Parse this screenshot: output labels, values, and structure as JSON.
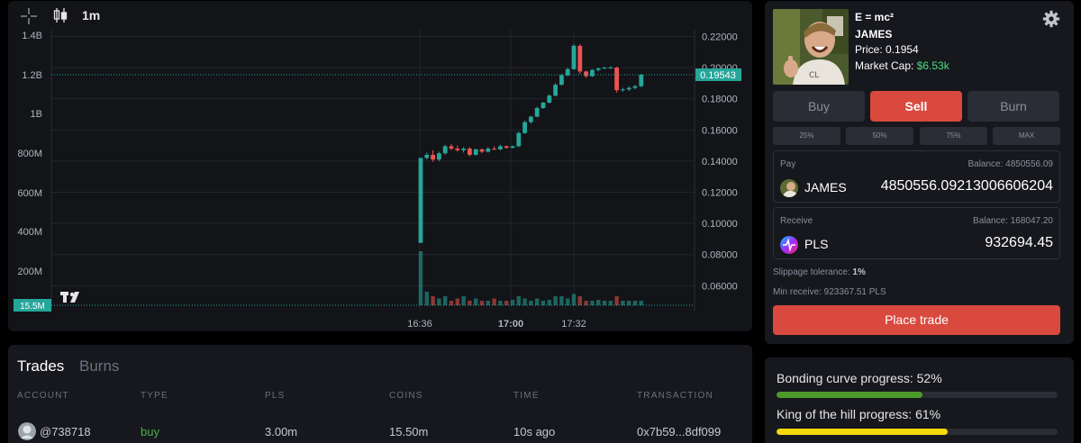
{
  "toolbar": {
    "interval": "1m",
    "crosshair_icon": "crosshair-icon",
    "candles_icon": "candlestick-icon"
  },
  "chart_data": {
    "type": "candlestick",
    "x_ticks": [
      {
        "label": "16:36",
        "bold": false
      },
      {
        "label": "17:00",
        "bold": true
      },
      {
        "label": "17:32",
        "bold": false
      }
    ],
    "price_axis": {
      "ticks": [
        "0.22000",
        "0.20000",
        "0.18000",
        "0.16000",
        "0.14000",
        "0.12000",
        "0.10000",
        "0.08000",
        "0.06000"
      ],
      "range": [
        0.044,
        0.222
      ],
      "current": "0.19543"
    },
    "volume_axis": {
      "ticks": [
        "1.4B",
        "1.2B",
        "1B",
        "800M",
        "600M",
        "400M",
        "200M"
      ],
      "current": "15.5M"
    },
    "candles": [
      {
        "o": 0.0875,
        "h": 0.142,
        "l": 0.0875,
        "c": 0.142
      },
      {
        "o": 0.142,
        "h": 0.1455,
        "l": 0.141,
        "c": 0.144
      },
      {
        "o": 0.144,
        "h": 0.147,
        "l": 0.1395,
        "c": 0.141
      },
      {
        "o": 0.141,
        "h": 0.146,
        "l": 0.14,
        "c": 0.145
      },
      {
        "o": 0.145,
        "h": 0.1505,
        "l": 0.144,
        "c": 0.1495
      },
      {
        "o": 0.1495,
        "h": 0.151,
        "l": 0.147,
        "c": 0.148
      },
      {
        "o": 0.148,
        "h": 0.15,
        "l": 0.146,
        "c": 0.147
      },
      {
        "o": 0.147,
        "h": 0.149,
        "l": 0.1455,
        "c": 0.148
      },
      {
        "o": 0.148,
        "h": 0.149,
        "l": 0.143,
        "c": 0.144
      },
      {
        "o": 0.144,
        "h": 0.148,
        "l": 0.1435,
        "c": 0.1475
      },
      {
        "o": 0.1475,
        "h": 0.148,
        "l": 0.145,
        "c": 0.146
      },
      {
        "o": 0.146,
        "h": 0.149,
        "l": 0.1455,
        "c": 0.148
      },
      {
        "o": 0.148,
        "h": 0.1495,
        "l": 0.147,
        "c": 0.1475
      },
      {
        "o": 0.1475,
        "h": 0.1505,
        "l": 0.147,
        "c": 0.1495
      },
      {
        "o": 0.1495,
        "h": 0.15,
        "l": 0.148,
        "c": 0.1485
      },
      {
        "o": 0.1485,
        "h": 0.15,
        "l": 0.148,
        "c": 0.1495
      },
      {
        "o": 0.1495,
        "h": 0.159,
        "l": 0.149,
        "c": 0.158
      },
      {
        "o": 0.158,
        "h": 0.166,
        "l": 0.1575,
        "c": 0.165
      },
      {
        "o": 0.165,
        "h": 0.169,
        "l": 0.164,
        "c": 0.1685
      },
      {
        "o": 0.1685,
        "h": 0.175,
        "l": 0.168,
        "c": 0.174
      },
      {
        "o": 0.174,
        "h": 0.178,
        "l": 0.1735,
        "c": 0.1775
      },
      {
        "o": 0.1775,
        "h": 0.183,
        "l": 0.177,
        "c": 0.182
      },
      {
        "o": 0.182,
        "h": 0.19,
        "l": 0.1815,
        "c": 0.189
      },
      {
        "o": 0.189,
        "h": 0.196,
        "l": 0.1885,
        "c": 0.195
      },
      {
        "o": 0.195,
        "h": 0.2,
        "l": 0.1945,
        "c": 0.199
      },
      {
        "o": 0.199,
        "h": 0.215,
        "l": 0.1985,
        "c": 0.214
      },
      {
        "o": 0.214,
        "h": 0.215,
        "l": 0.196,
        "c": 0.1975
      },
      {
        "o": 0.1975,
        "h": 0.198,
        "l": 0.1935,
        "c": 0.1945
      },
      {
        "o": 0.1945,
        "h": 0.199,
        "l": 0.194,
        "c": 0.1985
      },
      {
        "o": 0.1985,
        "h": 0.2,
        "l": 0.1975,
        "c": 0.1995
      },
      {
        "o": 0.1995,
        "h": 0.2005,
        "l": 0.199,
        "c": 0.2
      },
      {
        "o": 0.2,
        "h": 0.201,
        "l": 0.1995,
        "c": 0.2
      },
      {
        "o": 0.2,
        "h": 0.2005,
        "l": 0.184,
        "c": 0.1855
      },
      {
        "o": 0.1855,
        "h": 0.187,
        "l": 0.1845,
        "c": 0.186
      },
      {
        "o": 0.186,
        "h": 0.188,
        "l": 0.185,
        "c": 0.187
      },
      {
        "o": 0.187,
        "h": 0.189,
        "l": 0.186,
        "c": 0.188
      },
      {
        "o": 0.188,
        "h": 0.196,
        "l": 0.1875,
        "c": 0.1954
      }
    ],
    "first_candle_minute": 0,
    "colors": {
      "up": "#26a69a",
      "down": "#ef5350"
    }
  },
  "token": {
    "name": "E = mc²",
    "ticker": "JAMES",
    "price_label": "Price: 0.1954",
    "mcap_label": "Market Cap: ",
    "mcap_value": "$6.53k",
    "settings_icon": "gear-icon"
  },
  "actions": {
    "buy": "Buy",
    "sell": "Sell",
    "burn": "Burn",
    "pcts": [
      "25%",
      "50%",
      "75%",
      "MAX"
    ]
  },
  "pay": {
    "label": "Pay",
    "balance": "Balance: 4850556.09",
    "coin": "JAMES",
    "amount": "4850556.09213006606204"
  },
  "receive": {
    "label": "Receive",
    "balance": "Balance: 168047.20",
    "coin": "PLS",
    "amount": "932694.45"
  },
  "slippage": {
    "label": "Slippage tolerance: ",
    "value": "1%"
  },
  "min_receive": "Min receive: 923367.51 PLS",
  "place_trade": "Place trade",
  "progress": {
    "bonding_label": "Bonding curve progress: 52%",
    "bonding_value": 0.52,
    "king_label": "King of the hill progress: 61%",
    "king_value": 0.61,
    "bonding_color": "#4c9a2a",
    "king_color": "#f5d90a"
  },
  "trades": {
    "tabs": [
      "Trades",
      "Burns"
    ],
    "headers": [
      "ACCOUNT",
      "TYPE",
      "PLS",
      "COINS",
      "TIME",
      "TRANSACTION"
    ],
    "rows": [
      {
        "account": "@738718",
        "type": "buy",
        "pls": "3.00m",
        "coins": "15.50m",
        "time": "10s ago",
        "tx": "0x7b59...8df099"
      }
    ]
  }
}
